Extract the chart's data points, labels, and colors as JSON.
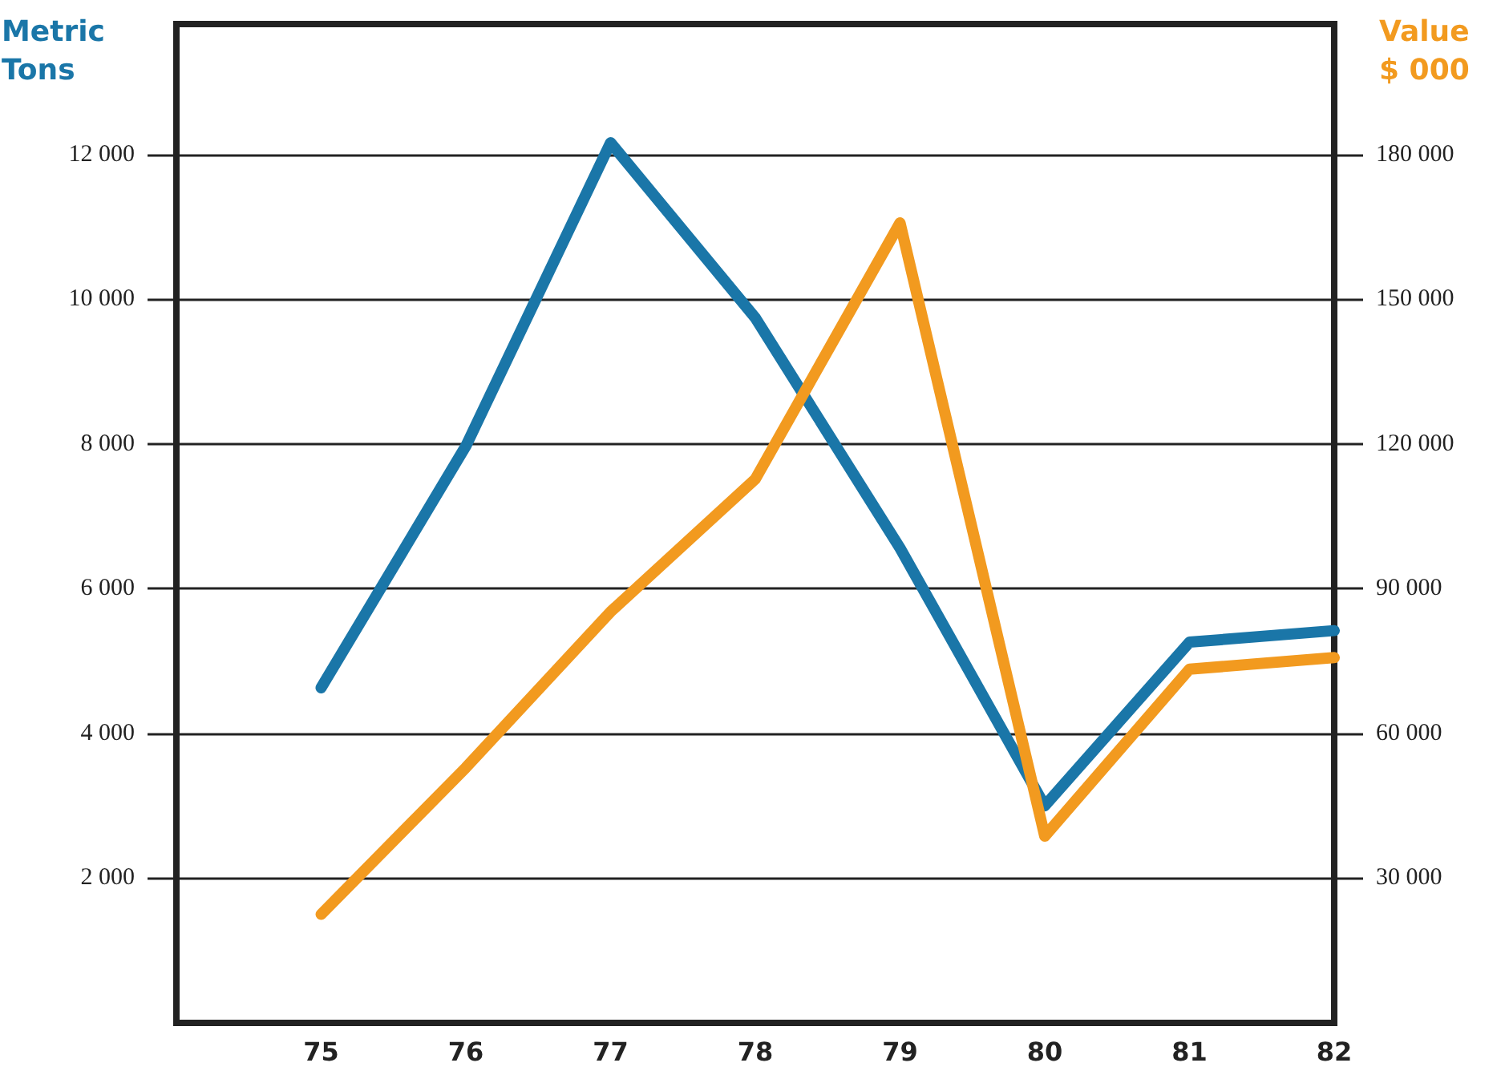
{
  "chart_data": {
    "type": "line",
    "ylabel": "Metric Tons",
    "y2label": "Value $ 000",
    "x": [
      75,
      76,
      77,
      78,
      79,
      80,
      81,
      82
    ],
    "xlim": [
      74,
      82
    ],
    "xticks": [
      75,
      76,
      77,
      78,
      79,
      80,
      81,
      82
    ],
    "ylim": [
      0,
      13800
    ],
    "yticks": [
      {
        "value": 2000,
        "label": "2 000"
      },
      {
        "value": 4000,
        "label": "4 000"
      },
      {
        "value": 6000,
        "label": "6 000"
      },
      {
        "value": 8000,
        "label": "8 000"
      },
      {
        "value": 10000,
        "label": "10 000"
      },
      {
        "value": 12000,
        "label": "12 000"
      }
    ],
    "y2lim": [
      0,
      207000
    ],
    "y2ticks": [
      {
        "value": 30000,
        "label": "30 000"
      },
      {
        "value": 60000,
        "label": "60 000"
      },
      {
        "value": 90000,
        "label": "90 000"
      },
      {
        "value": 120000,
        "label": "120 000"
      },
      {
        "value": 150000,
        "label": "150 000"
      },
      {
        "value": 180000,
        "label": "180 000"
      }
    ],
    "series": [
      {
        "color": "#1a76a8",
        "values": [
          4630,
          7970,
          12160,
          9740,
          6560,
          3000,
          5260,
          5420
        ]
      },
      {
        "color": "#f29a1f",
        "axis": "y2",
        "values": [
          22500,
          52900,
          85200,
          112700,
          165800,
          38700,
          73300,
          75700
        ]
      }
    ],
    "grid": "y",
    "marker": "none",
    "line_style": "solid"
  }
}
